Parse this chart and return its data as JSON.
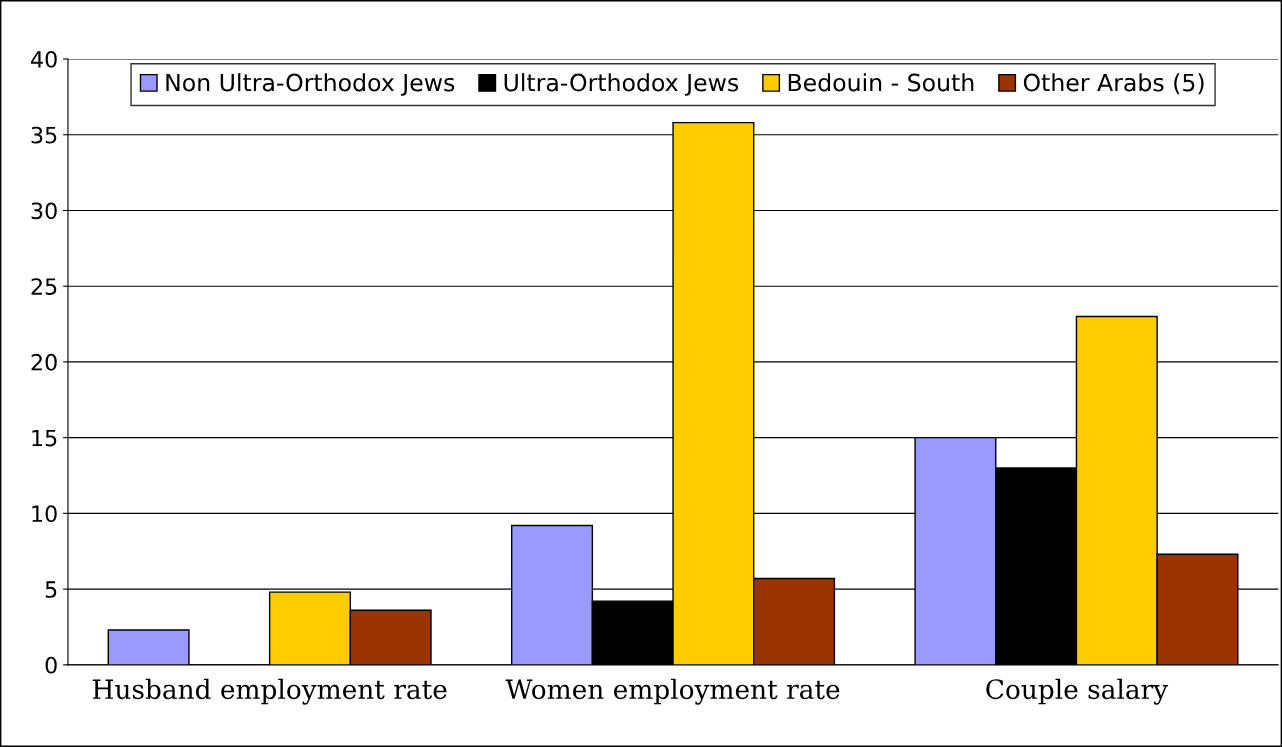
{
  "chart_data": {
    "type": "bar",
    "categories": [
      "Husband employment rate",
      "Women employment rate",
      "Couple salary"
    ],
    "series": [
      {
        "name": "Non Ultra-Orthodox Jews",
        "color": "#9999ff",
        "values": [
          2.3,
          9.2,
          15.0
        ]
      },
      {
        "name": "Ultra-Orthodox Jews",
        "color": "#000000",
        "values": [
          0,
          4.2,
          13.0
        ]
      },
      {
        "name": "Bedouin - South",
        "color": "#ffcc00",
        "values": [
          4.8,
          35.8,
          23.0
        ]
      },
      {
        "name": "Other Arabs (5)",
        "color": "#993300",
        "values": [
          3.6,
          5.7,
          7.3
        ]
      }
    ],
    "ylim": [
      0,
      40
    ],
    "yticks": [
      0,
      5,
      10,
      15,
      20,
      25,
      30,
      35,
      40
    ],
    "grid": "y",
    "legend": "top"
  }
}
